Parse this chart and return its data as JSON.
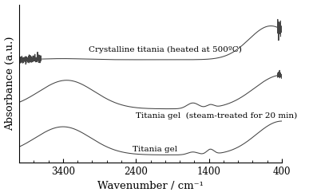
{
  "xlabel": "Wavenumber / cm⁻¹",
  "ylabel": "Absorbance (a.u.)",
  "xmin": 4000,
  "xmax": 400,
  "labels": [
    "Crystalline titania (heated at 500ºC)",
    "Titania gel  (steam-treated for 20 min)",
    "Titania gel"
  ],
  "offsets": [
    0.62,
    0.3,
    0.0
  ],
  "line_color": "#444444",
  "background_color": "#ffffff",
  "label_fontsize": 7.5,
  "axis_label_fontsize": 9.5
}
